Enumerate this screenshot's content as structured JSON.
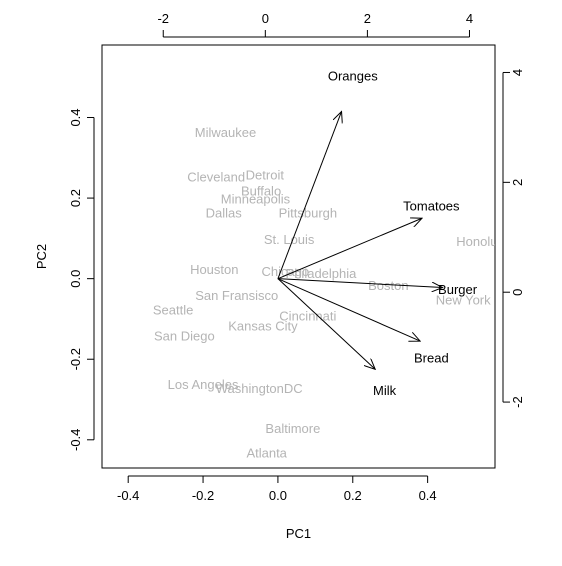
{
  "chart_data": {
    "type": "scatter",
    "subtype": "pca-biplot",
    "title": "",
    "xlabel": "PC1",
    "ylabel": "PC2",
    "xlim": [
      -0.47,
      0.58
    ],
    "ylim": [
      -0.47,
      0.58
    ],
    "x_ticks": [
      -0.4,
      -0.2,
      0.0,
      0.2,
      0.4
    ],
    "x_tick_labels": [
      "-0.4",
      "-0.2",
      "0.0",
      "0.2",
      "0.4"
    ],
    "y_ticks": [
      -0.4,
      -0.2,
      0.0,
      0.2,
      0.4
    ],
    "y_tick_labels": [
      "-0.4",
      "-0.2",
      "0.0",
      "0.2",
      "0.4"
    ],
    "top_axis": {
      "ticks": [
        -2,
        0,
        2,
        4
      ],
      "tick_labels": [
        "-2",
        "0",
        "2",
        "4"
      ],
      "lim": [
        -3.2,
        4.5
      ]
    },
    "right_axis": {
      "ticks": [
        -2,
        0,
        2,
        4
      ],
      "tick_labels": [
        "-2",
        "0",
        "2",
        "4"
      ],
      "lim": [
        -3.2,
        4.5
      ]
    },
    "grid": false,
    "colors": {
      "observation": "#b4b4b4",
      "variable": "#000000",
      "axis": "#000000"
    },
    "observations": [
      {
        "label": "Milwaukee",
        "x": -0.14,
        "y": 0.36
      },
      {
        "label": "Detroit",
        "x": -0.035,
        "y": 0.255
      },
      {
        "label": "Cleveland",
        "x": -0.165,
        "y": 0.25
      },
      {
        "label": "Buffalo",
        "x": -0.045,
        "y": 0.215
      },
      {
        "label": "Minneapolis",
        "x": -0.06,
        "y": 0.195
      },
      {
        "label": "Dallas",
        "x": -0.145,
        "y": 0.16
      },
      {
        "label": "Pittsburgh",
        "x": 0.08,
        "y": 0.16
      },
      {
        "label": "St. Louis",
        "x": 0.03,
        "y": 0.095
      },
      {
        "label": "Houston",
        "x": -0.17,
        "y": 0.02
      },
      {
        "label": "Chicago",
        "x": 0.02,
        "y": 0.015
      },
      {
        "label": "Philadelphia",
        "x": 0.115,
        "y": 0.01
      },
      {
        "label": "Boston",
        "x": 0.295,
        "y": -0.02
      },
      {
        "label": "San Fransisco",
        "x": -0.11,
        "y": -0.045
      },
      {
        "label": "Seattle",
        "x": -0.28,
        "y": -0.08
      },
      {
        "label": "Cincinnati",
        "x": 0.08,
        "y": -0.095
      },
      {
        "label": "Kansas City",
        "x": -0.04,
        "y": -0.12
      },
      {
        "label": "San Diego",
        "x": -0.25,
        "y": -0.145
      },
      {
        "label": "New York",
        "x": 0.495,
        "y": -0.055
      },
      {
        "label": "Honolulu",
        "x": 0.545,
        "y": 0.09
      },
      {
        "label": "Los Angeles",
        "x": -0.2,
        "y": -0.265
      },
      {
        "label": "WashingtonDC",
        "x": -0.05,
        "y": -0.275
      },
      {
        "label": "Baltimore",
        "x": 0.04,
        "y": -0.375
      },
      {
        "label": "Atlanta",
        "x": -0.03,
        "y": -0.435
      }
    ],
    "variables": [
      {
        "label": "Oranges",
        "x": 0.17,
        "y": 0.415,
        "label_x": 0.2,
        "label_y": 0.5
      },
      {
        "label": "Tomatoes",
        "x": 0.385,
        "y": 0.15,
        "label_x": 0.41,
        "label_y": 0.178
      },
      {
        "label": "Burger",
        "x": 0.44,
        "y": -0.022,
        "label_x": 0.48,
        "label_y": -0.03
      },
      {
        "label": "Bread",
        "x": 0.38,
        "y": -0.155,
        "label_x": 0.41,
        "label_y": -0.2
      },
      {
        "label": "Milk",
        "x": 0.26,
        "y": -0.225,
        "label_x": 0.285,
        "label_y": -0.28
      }
    ]
  }
}
